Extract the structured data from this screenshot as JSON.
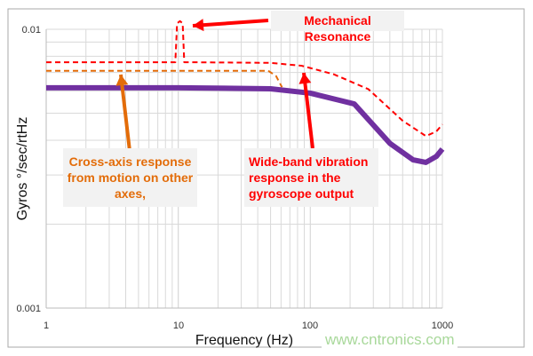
{
  "chart_data": {
    "type": "line",
    "xlabel": "Frequency (Hz)",
    "ylabel": "Gyros °/sec/rtHz",
    "x_scale": "log",
    "y_scale": "log",
    "xlim": [
      1,
      1000
    ],
    "ylim": [
      0.001,
      0.01
    ],
    "x_ticks": [
      "1",
      "10",
      "100",
      "1000"
    ],
    "y_ticks": [
      "0.001",
      "0.01"
    ],
    "grid": true,
    "series": [
      {
        "style": "solid",
        "color": "#7030a0",
        "points": [
          [
            1,
            0.00617
          ],
          [
            10,
            0.00617
          ],
          [
            50,
            0.00612
          ],
          [
            100,
            0.0059
          ],
          [
            215,
            0.0054
          ],
          [
            400,
            0.0039
          ],
          [
            600,
            0.0034
          ],
          [
            750,
            0.00333
          ],
          [
            900,
            0.0035
          ],
          [
            1000,
            0.00372
          ]
        ]
      },
      {
        "style": "dashed",
        "color": "#ff0000",
        "points": [
          [
            1,
            0.00762
          ],
          [
            9.5,
            0.00762
          ],
          [
            9.8,
            0.0105
          ],
          [
            10.3,
            0.0107
          ],
          [
            10.8,
            0.0105
          ],
          [
            11.1,
            0.00762
          ],
          [
            50,
            0.00758
          ],
          [
            86,
            0.0074
          ],
          [
            150,
            0.0069
          ],
          [
            275,
            0.0061
          ],
          [
            500,
            0.0047
          ],
          [
            750,
            0.00414
          ],
          [
            900,
            0.0043
          ],
          [
            1000,
            0.00456
          ]
        ]
      },
      {
        "style": "dashed",
        "color": "#e36c09",
        "points": [
          [
            1,
            0.0071
          ],
          [
            48,
            0.0071
          ],
          [
            55,
            0.0068
          ],
          [
            61,
            0.0062
          ]
        ]
      }
    ],
    "annotations": [
      {
        "text": "Mechanical Resonance",
        "color": "#ff0000"
      },
      {
        "text": "Cross-axis response from motion on other axes,",
        "color": "#e36c09"
      },
      {
        "text": "Wide-band vibration response in the gyroscope output",
        "color": "#ff0000"
      }
    ]
  },
  "watermark": "www.cntronics.com"
}
